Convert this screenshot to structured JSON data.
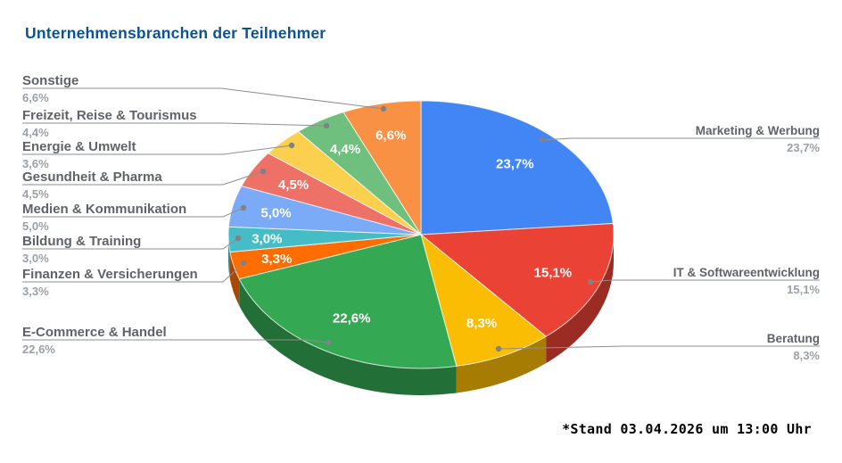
{
  "chart_data": {
    "type": "pie",
    "projection": "3d",
    "title": "Unternehmensbranchen der Teilnehmer",
    "footnote": "*Stand 03.04.2026 um 13:00 Uhr",
    "start_angle": "top",
    "direction": "clockwise",
    "legend_position": "outside-callouts",
    "slices": [
      {
        "label": "Marketing & Werbung",
        "value_pct": 23.7,
        "pct_text": "23,7%",
        "color": "#4285F4",
        "inner_label": true
      },
      {
        "label": "IT & Softwareentwicklung",
        "value_pct": 15.1,
        "pct_text": "15,1%",
        "color": "#EA4335",
        "inner_label": true
      },
      {
        "label": "Beratung",
        "value_pct": 8.3,
        "pct_text": "8,3%",
        "color": "#FBBC04",
        "inner_label": true
      },
      {
        "label": "E-Commerce & Handel",
        "value_pct": 22.6,
        "pct_text": "22,6%",
        "color": "#34A853",
        "inner_label": true
      },
      {
        "label": "Finanzen & Versicherungen",
        "value_pct": 3.3,
        "pct_text": "3,3%",
        "color": "#FF6D01",
        "inner_label": true
      },
      {
        "label": "Bildung & Training",
        "value_pct": 3.0,
        "pct_text": "3,0%",
        "color": "#46BDC6",
        "inner_label": true
      },
      {
        "label": "Medien & Kommunikation",
        "value_pct": 5.0,
        "pct_text": "5,0%",
        "color": "#7BAAF7",
        "inner_label": true
      },
      {
        "label": "Gesundheit & Pharma",
        "value_pct": 4.5,
        "pct_text": "4,5%",
        "color": "#EE7168",
        "inner_label": true
      },
      {
        "label": "Energie & Umwelt",
        "value_pct": 3.6,
        "pct_text": "3,6%",
        "color": "#FCD04F",
        "inner_label": false
      },
      {
        "label": "Freizeit, Reise & Tourismus",
        "value_pct": 4.4,
        "pct_text": "4,4%",
        "color": "#6FBF7E",
        "inner_label": true
      },
      {
        "label": "Sonstige",
        "value_pct": 6.6,
        "pct_text": "6,6%",
        "color": "#F89144",
        "inner_label": true
      }
    ],
    "colors": {
      "title": "#0B5394",
      "label_name": "#5F6368",
      "label_pct": "#9AA0A6",
      "leader_line": "#8E8E8E",
      "inner_label_text": "#FFFFFF",
      "background": "#FFFFFF"
    }
  }
}
